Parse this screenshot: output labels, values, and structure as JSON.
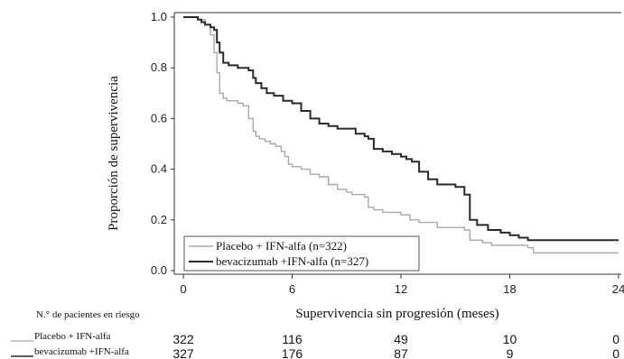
{
  "chart_data": {
    "type": "line",
    "title": "",
    "xlabel": "Supervivencia sin progresión (meses)",
    "ylabel": "Proporción de supervivencia",
    "xlim": [
      0,
      24
    ],
    "ylim": [
      0,
      1.0
    ],
    "x_ticks": [
      "0",
      "6",
      "12",
      "18",
      "24"
    ],
    "y_ticks": [
      "0.0",
      "0.2",
      "0.4",
      "0.6",
      "0.8",
      "1.0"
    ],
    "grid": false,
    "legend_position": "bottom-left",
    "series": [
      {
        "name": "Placebo + IFN-alfa (n=322)",
        "color": "#a8a8a8",
        "x": [
          0,
          0.8,
          1.2,
          1.5,
          1.7,
          1.85,
          2.0,
          2.2,
          2.4,
          2.7,
          3.0,
          3.3,
          3.6,
          3.85,
          4.0,
          4.2,
          4.5,
          4.8,
          5.1,
          5.4,
          5.6,
          5.8,
          6.0,
          6.5,
          7.0,
          7.5,
          8.0,
          8.5,
          9.0,
          9.3,
          9.7,
          10.0,
          10.2,
          10.5,
          11.0,
          11.5,
          12.0,
          12.5,
          13.0,
          14.0,
          15.0,
          15.5,
          15.8,
          16.5,
          17.0,
          18.0,
          19.0,
          19.3,
          20.0,
          24.0
        ],
        "y": [
          1.0,
          0.99,
          0.97,
          0.93,
          0.86,
          0.78,
          0.7,
          0.68,
          0.67,
          0.67,
          0.66,
          0.65,
          0.6,
          0.55,
          0.53,
          0.52,
          0.51,
          0.5,
          0.49,
          0.47,
          0.45,
          0.42,
          0.41,
          0.4,
          0.38,
          0.37,
          0.34,
          0.32,
          0.31,
          0.3,
          0.3,
          0.29,
          0.25,
          0.24,
          0.23,
          0.23,
          0.22,
          0.2,
          0.19,
          0.17,
          0.17,
          0.16,
          0.12,
          0.11,
          0.1,
          0.1,
          0.09,
          0.07,
          0.07,
          0.07
        ]
      },
      {
        "name": "bevacizumab +IFN-alfa (n=327)",
        "color": "#2a2a2a",
        "x": [
          0,
          0.5,
          0.8,
          1.0,
          1.2,
          1.5,
          1.7,
          1.85,
          2.0,
          2.2,
          2.5,
          3.0,
          3.3,
          3.6,
          3.85,
          4.0,
          4.3,
          4.6,
          5.0,
          5.5,
          6.0,
          6.5,
          7.0,
          7.5,
          8.0,
          8.5,
          9.0,
          9.5,
          10.0,
          10.2,
          10.5,
          11.0,
          11.5,
          12.0,
          12.3,
          12.6,
          13.0,
          13.5,
          14.0,
          14.5,
          15.0,
          15.5,
          15.8,
          16.2,
          16.8,
          17.5,
          18.0,
          18.5,
          19.0,
          24.0
        ],
        "y": [
          1.0,
          1.0,
          0.99,
          0.98,
          0.97,
          0.96,
          0.95,
          0.9,
          0.86,
          0.82,
          0.81,
          0.8,
          0.8,
          0.79,
          0.76,
          0.74,
          0.72,
          0.7,
          0.69,
          0.67,
          0.66,
          0.63,
          0.6,
          0.58,
          0.57,
          0.56,
          0.56,
          0.54,
          0.53,
          0.52,
          0.48,
          0.47,
          0.46,
          0.45,
          0.44,
          0.43,
          0.39,
          0.36,
          0.34,
          0.34,
          0.33,
          0.3,
          0.2,
          0.18,
          0.16,
          0.15,
          0.14,
          0.13,
          0.12,
          0.12
        ]
      }
    ],
    "risk_table": {
      "title": "N.° de pacientes en riesgo",
      "timepoints": [
        0,
        6,
        12,
        18,
        24
      ],
      "rows": [
        {
          "label": "Placebo + IFN-alfa",
          "color": "#a8a8a8",
          "values": [
            "322",
            "116",
            "49",
            "10",
            "0"
          ]
        },
        {
          "label": "bevacizumab +IFN-alfa",
          "color": "#2a2a2a",
          "values": [
            "327",
            "176",
            "87",
            "9",
            "0"
          ]
        }
      ]
    }
  }
}
